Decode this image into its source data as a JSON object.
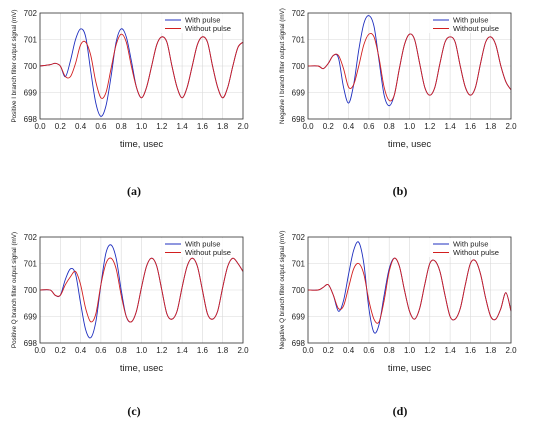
{
  "chart_data": [
    {
      "panel_label": "(a)",
      "type": "line",
      "ylabel": "Positive I branch filter output signal (mV)",
      "xlabel": "time, usec",
      "xlim": [
        0.0,
        2.0
      ],
      "ylim": [
        698,
        702
      ],
      "xticks": [
        "0.0",
        "0.2",
        "0.4",
        "0.6",
        "0.8",
        "1.0",
        "1.2",
        "1.4",
        "1.6",
        "1.8",
        "2.0"
      ],
      "yticks": [
        "698",
        "699",
        "700",
        "701",
        "702"
      ],
      "grid": true,
      "legend_position": "top-right",
      "series": [
        {
          "name": "With pulse",
          "color": "#1f2fbf",
          "x": [
            0.0,
            0.1,
            0.15,
            0.2,
            0.25,
            0.3,
            0.35,
            0.4,
            0.45,
            0.5,
            0.55,
            0.6,
            0.65,
            0.7,
            0.75,
            0.8,
            0.85,
            0.9,
            0.95,
            1.0,
            1.05,
            1.1,
            1.15,
            1.2,
            1.25,
            1.3,
            1.35,
            1.4,
            1.45,
            1.5,
            1.55,
            1.6,
            1.65,
            1.7,
            1.75,
            1.8,
            1.85,
            1.9,
            1.95,
            2.0
          ],
          "y": [
            700,
            700.05,
            700.1,
            700.0,
            699.6,
            700.2,
            701.0,
            701.4,
            701.1,
            699.8,
            698.6,
            698.1,
            698.5,
            699.6,
            700.9,
            701.4,
            701.1,
            700.2,
            699.2,
            698.8,
            699.2,
            700.0,
            700.8,
            701.1,
            700.9,
            700.0,
            699.2,
            698.8,
            699.2,
            700.0,
            700.8,
            701.1,
            700.9,
            700.0,
            699.2,
            698.8,
            699.2,
            700.0,
            700.7,
            700.9
          ]
        },
        {
          "name": "Without pulse",
          "color": "#d21f1f",
          "x": [
            0.0,
            0.1,
            0.15,
            0.2,
            0.25,
            0.3,
            0.35,
            0.4,
            0.45,
            0.5,
            0.55,
            0.6,
            0.65,
            0.7,
            0.75,
            0.8,
            0.85,
            0.9,
            0.95,
            1.0,
            1.05,
            1.1,
            1.15,
            1.2,
            1.25,
            1.3,
            1.35,
            1.4,
            1.45,
            1.5,
            1.55,
            1.6,
            1.65,
            1.7,
            1.75,
            1.8,
            1.85,
            1.9,
            1.95,
            2.0
          ],
          "y": [
            700,
            700.05,
            700.1,
            700.0,
            699.6,
            699.6,
            700.1,
            700.8,
            700.9,
            700.4,
            699.4,
            698.8,
            699.0,
            699.9,
            700.8,
            701.2,
            700.9,
            700.0,
            699.2,
            698.8,
            699.2,
            700.0,
            700.8,
            701.1,
            700.9,
            700.0,
            699.2,
            698.8,
            699.2,
            700.0,
            700.8,
            701.1,
            700.9,
            700.0,
            699.2,
            698.8,
            699.2,
            700.0,
            700.7,
            700.9
          ]
        }
      ]
    },
    {
      "panel_label": "(b)",
      "type": "line",
      "ylabel": "Negative I branch filter output signal (mV)",
      "xlabel": "time, usec",
      "xlim": [
        0.0,
        2.0
      ],
      "ylim": [
        698,
        702
      ],
      "xticks": [
        "0.0",
        "0.2",
        "0.4",
        "0.6",
        "0.8",
        "1.0",
        "1.2",
        "1.4",
        "1.6",
        "1.8",
        "2.0"
      ],
      "yticks": [
        "698",
        "699",
        "700",
        "701",
        "702"
      ],
      "grid": true,
      "legend_position": "top-right",
      "series": [
        {
          "name": "With pulse",
          "color": "#1f2fbf",
          "x": [
            0.0,
            0.1,
            0.15,
            0.2,
            0.25,
            0.3,
            0.35,
            0.4,
            0.45,
            0.5,
            0.55,
            0.6,
            0.65,
            0.7,
            0.75,
            0.8,
            0.85,
            0.9,
            0.95,
            1.0,
            1.05,
            1.1,
            1.15,
            1.2,
            1.25,
            1.3,
            1.35,
            1.4,
            1.45,
            1.5,
            1.55,
            1.6,
            1.65,
            1.7,
            1.75,
            1.8,
            1.85,
            1.9,
            1.95,
            2.0
          ],
          "y": [
            700,
            700,
            699.9,
            700.1,
            700.4,
            700.3,
            699.2,
            698.6,
            699.3,
            700.6,
            701.6,
            701.9,
            701.5,
            700.2,
            698.9,
            698.5,
            698.9,
            699.9,
            700.8,
            701.2,
            701.0,
            700.1,
            699.2,
            698.9,
            699.2,
            700.1,
            700.9,
            701.1,
            700.9,
            700.0,
            699.2,
            698.9,
            699.2,
            700.1,
            700.9,
            701.1,
            700.8,
            700.0,
            699.4,
            699.1
          ]
        },
        {
          "name": "Without pulse",
          "color": "#d21f1f",
          "x": [
            0.0,
            0.1,
            0.15,
            0.2,
            0.25,
            0.3,
            0.35,
            0.4,
            0.45,
            0.5,
            0.55,
            0.6,
            0.65,
            0.7,
            0.75,
            0.8,
            0.85,
            0.9,
            0.95,
            1.0,
            1.05,
            1.1,
            1.15,
            1.2,
            1.25,
            1.3,
            1.35,
            1.4,
            1.45,
            1.5,
            1.55,
            1.6,
            1.65,
            1.7,
            1.75,
            1.8,
            1.85,
            1.9,
            1.95,
            2.0
          ],
          "y": [
            700,
            700,
            699.9,
            700.1,
            700.4,
            700.4,
            699.9,
            699.2,
            699.3,
            700.0,
            700.8,
            701.2,
            701.1,
            700.3,
            699.2,
            698.7,
            698.9,
            699.9,
            700.8,
            701.2,
            701.0,
            700.1,
            699.2,
            698.9,
            699.2,
            700.1,
            700.9,
            701.1,
            700.9,
            700.0,
            699.2,
            698.9,
            699.2,
            700.1,
            700.9,
            701.1,
            700.8,
            700.0,
            699.4,
            699.1
          ]
        }
      ]
    },
    {
      "panel_label": "(c)",
      "type": "line",
      "ylabel": "Positive Q branch filter output signal (mV)",
      "xlabel": "time, usec",
      "xlim": [
        0.0,
        2.0
      ],
      "ylim": [
        698,
        702
      ],
      "xticks": [
        "0.0",
        "0.2",
        "0.4",
        "0.6",
        "0.8",
        "1.0",
        "1.2",
        "1.4",
        "1.6",
        "1.8",
        "2.0"
      ],
      "yticks": [
        "698",
        "699",
        "700",
        "701",
        "702"
      ],
      "grid": true,
      "legend_position": "top-right",
      "series": [
        {
          "name": "With pulse",
          "color": "#1f2fbf",
          "x": [
            0.0,
            0.1,
            0.15,
            0.2,
            0.25,
            0.3,
            0.35,
            0.4,
            0.45,
            0.5,
            0.55,
            0.6,
            0.65,
            0.7,
            0.75,
            0.8,
            0.85,
            0.9,
            0.95,
            1.0,
            1.05,
            1.1,
            1.15,
            1.2,
            1.25,
            1.3,
            1.35,
            1.4,
            1.45,
            1.5,
            1.55,
            1.6,
            1.65,
            1.7,
            1.75,
            1.8,
            1.85,
            1.9,
            1.95,
            2.0
          ],
          "y": [
            700,
            700,
            699.8,
            699.8,
            700.4,
            700.8,
            700.6,
            699.5,
            698.5,
            698.2,
            698.8,
            700.2,
            701.4,
            701.7,
            701.2,
            700.0,
            699.0,
            698.8,
            699.2,
            700.1,
            700.9,
            701.2,
            700.9,
            700.0,
            699.1,
            698.9,
            699.2,
            700.1,
            700.9,
            701.2,
            700.9,
            700.0,
            699.1,
            698.9,
            699.2,
            700.1,
            700.9,
            701.2,
            701.0,
            700.7
          ]
        },
        {
          "name": "Without pulse",
          "color": "#d21f1f",
          "x": [
            0.0,
            0.1,
            0.15,
            0.2,
            0.25,
            0.3,
            0.35,
            0.4,
            0.45,
            0.5,
            0.55,
            0.6,
            0.65,
            0.7,
            0.75,
            0.8,
            0.85,
            0.9,
            0.95,
            1.0,
            1.05,
            1.1,
            1.15,
            1.2,
            1.25,
            1.3,
            1.35,
            1.4,
            1.45,
            1.5,
            1.55,
            1.6,
            1.65,
            1.7,
            1.75,
            1.8,
            1.85,
            1.9,
            1.95,
            2.0
          ],
          "y": [
            700,
            700,
            699.8,
            699.8,
            700.2,
            700.5,
            700.7,
            700.2,
            699.3,
            698.8,
            699.1,
            700.2,
            701.0,
            701.2,
            700.8,
            699.8,
            699.0,
            698.8,
            699.2,
            700.1,
            700.9,
            701.2,
            700.9,
            700.0,
            699.1,
            698.9,
            699.2,
            700.1,
            700.9,
            701.2,
            700.9,
            700.0,
            699.1,
            698.9,
            699.2,
            700.1,
            700.9,
            701.2,
            701.0,
            700.7
          ]
        }
      ]
    },
    {
      "panel_label": "(d)",
      "type": "line",
      "ylabel": "Negative Q branch filter output signal (mV)",
      "xlabel": "time, usec",
      "xlim": [
        0.0,
        2.0
      ],
      "ylim": [
        698,
        702
      ],
      "xticks": [
        "0.0",
        "0.2",
        "0.4",
        "0.6",
        "0.8",
        "1.0",
        "1.2",
        "1.4",
        "1.6",
        "1.8",
        "2.0"
      ],
      "yticks": [
        "698",
        "699",
        "700",
        "701",
        "702"
      ],
      "grid": true,
      "legend_position": "top-right",
      "series": [
        {
          "name": "With pulse",
          "color": "#1f2fbf",
          "x": [
            0.0,
            0.1,
            0.15,
            0.2,
            0.25,
            0.3,
            0.35,
            0.4,
            0.45,
            0.5,
            0.55,
            0.6,
            0.65,
            0.7,
            0.75,
            0.8,
            0.85,
            0.9,
            0.95,
            1.0,
            1.05,
            1.1,
            1.15,
            1.2,
            1.25,
            1.3,
            1.35,
            1.4,
            1.45,
            1.5,
            1.55,
            1.6,
            1.65,
            1.7,
            1.75,
            1.8,
            1.85,
            1.9,
            1.95,
            2.0
          ],
          "y": [
            700,
            700,
            700.1,
            700.2,
            699.8,
            699.2,
            699.6,
            700.6,
            701.5,
            701.8,
            701.0,
            699.3,
            698.4,
            698.7,
            699.8,
            700.8,
            701.2,
            700.9,
            700.0,
            699.2,
            698.9,
            699.3,
            700.2,
            701.0,
            701.1,
            700.7,
            699.8,
            699.0,
            698.9,
            699.3,
            700.2,
            701.0,
            701.1,
            700.6,
            699.7,
            699.0,
            698.9,
            699.3,
            699.9,
            699.2
          ]
        },
        {
          "name": "Without pulse",
          "color": "#d21f1f",
          "x": [
            0.0,
            0.1,
            0.15,
            0.2,
            0.25,
            0.3,
            0.35,
            0.4,
            0.45,
            0.5,
            0.55,
            0.6,
            0.65,
            0.7,
            0.75,
            0.8,
            0.85,
            0.9,
            0.95,
            1.0,
            1.05,
            1.1,
            1.15,
            1.2,
            1.25,
            1.3,
            1.35,
            1.4,
            1.45,
            1.5,
            1.55,
            1.6,
            1.65,
            1.7,
            1.75,
            1.8,
            1.85,
            1.9,
            1.95,
            2.0
          ],
          "y": [
            700,
            700,
            700.1,
            700.2,
            699.8,
            699.3,
            699.4,
            700.1,
            700.8,
            701.0,
            700.6,
            699.6,
            698.9,
            698.8,
            699.6,
            700.7,
            701.2,
            700.9,
            700.0,
            699.2,
            698.9,
            699.3,
            700.2,
            701.0,
            701.1,
            700.7,
            699.8,
            699.0,
            698.9,
            699.3,
            700.2,
            701.0,
            701.1,
            700.6,
            699.7,
            699.0,
            698.9,
            699.3,
            699.9,
            699.2
          ]
        }
      ]
    }
  ]
}
